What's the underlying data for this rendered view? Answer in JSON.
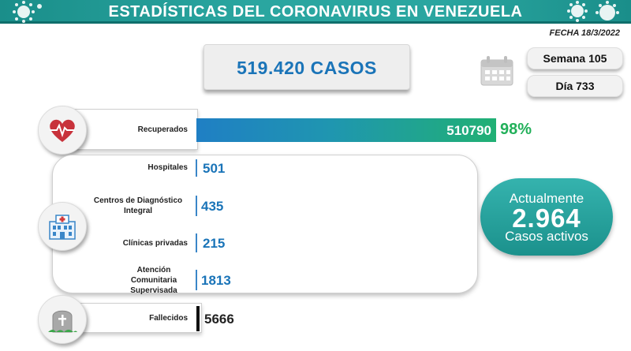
{
  "header": {
    "title": "ESTADÍSTICAS DEL CORONAVIRUS EN VENEZUELA",
    "date": "FECHA 18/3/2022"
  },
  "summary": {
    "total_cases": "519.420 CASOS",
    "week": "Semana 105",
    "day": "Día 733"
  },
  "recovered": {
    "label": "Recuperados",
    "value": "510790",
    "percent": "98%"
  },
  "hospitalization": [
    {
      "label": "Hospitales",
      "value": "501"
    },
    {
      "label": "Centros de Diagnóstico Integral",
      "value": "435"
    },
    {
      "label": "Clínicas privadas",
      "value": "215"
    },
    {
      "label": "Atención Comunitaria Supervisada",
      "value": "1813"
    }
  ],
  "active": {
    "top": "Actualmente",
    "value": "2.964",
    "bottom": "Casos activos"
  },
  "deaths": {
    "label": "Fallecidos",
    "value": "5666"
  },
  "colors": {
    "banner": "#2aa6a0",
    "accent_blue": "#1a74b8",
    "recovered_green": "#22b05a",
    "active_teal": "#1b918c"
  },
  "icons": [
    "virus-icon",
    "calendar-icon",
    "heart-pulse-icon",
    "hospital-icon",
    "tombstone-icon"
  ]
}
